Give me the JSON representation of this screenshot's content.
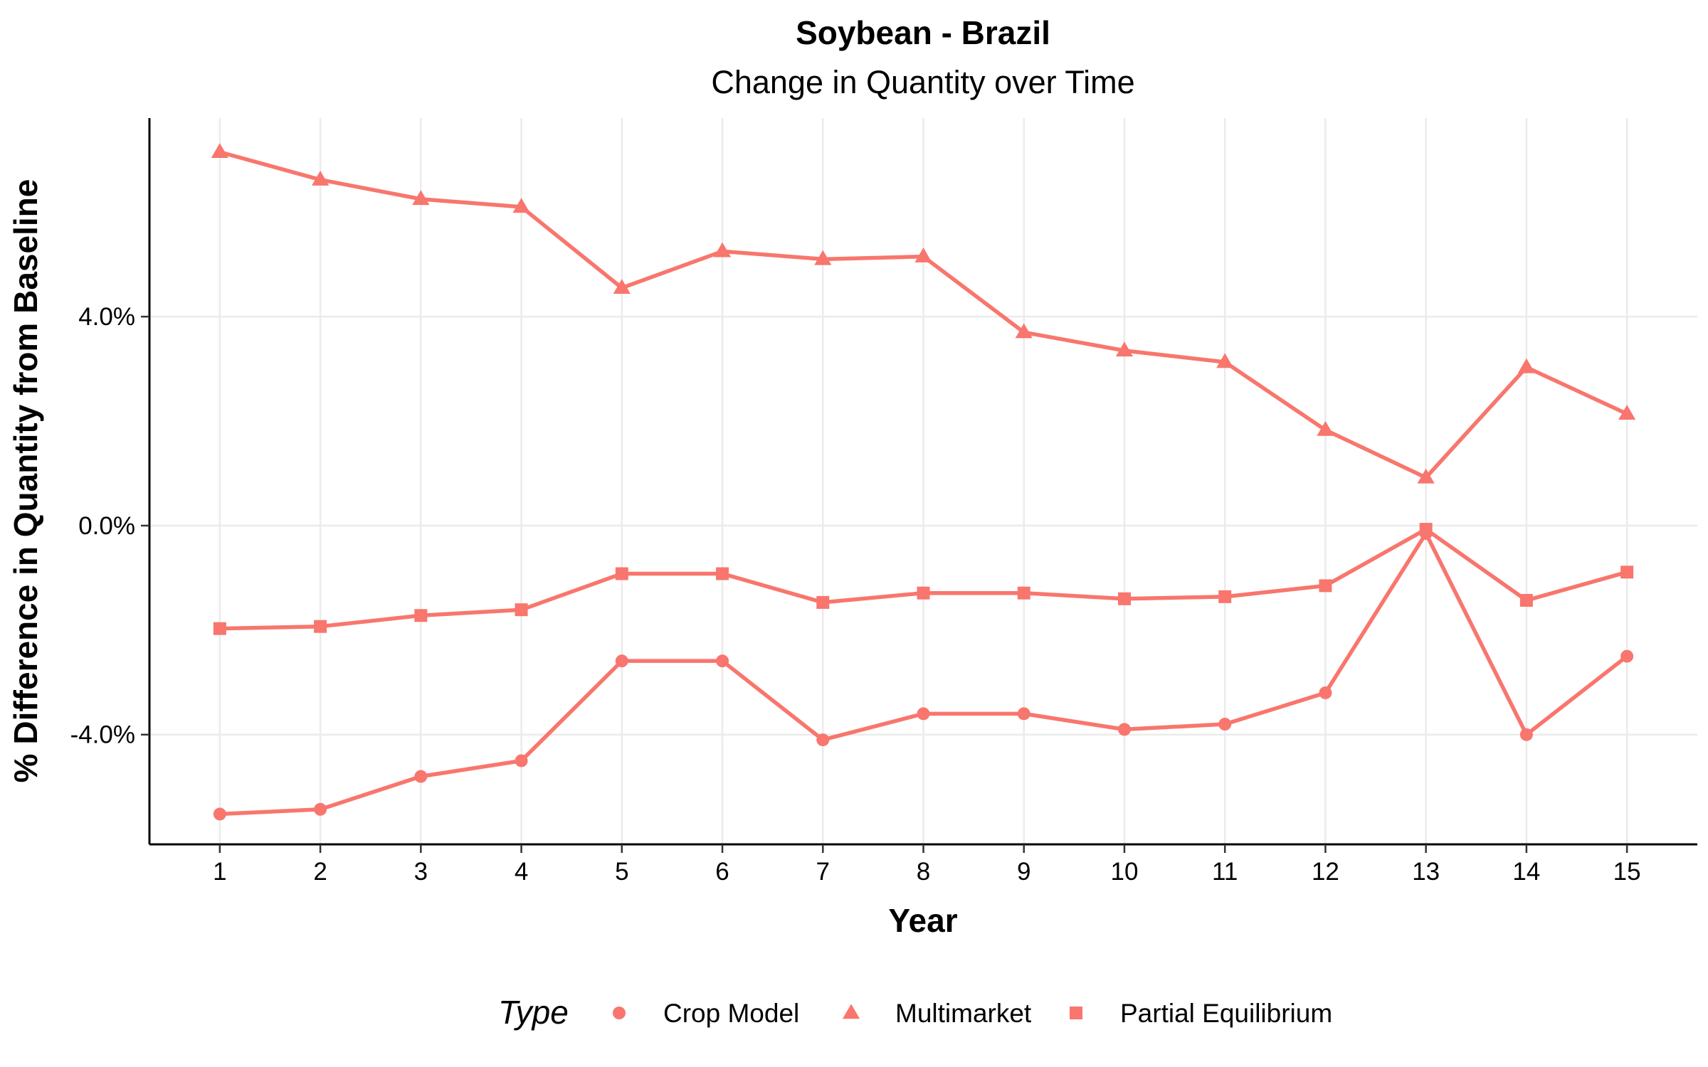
{
  "chart_data": {
    "type": "line",
    "title": "Soybean - Brazil",
    "subtitle": "Change in Quantity over Time",
    "xlabel": "Year",
    "ylabel": "% Difference in Quantity from Baseline",
    "x": [
      1,
      2,
      3,
      4,
      5,
      6,
      7,
      8,
      9,
      10,
      11,
      12,
      13,
      14,
      15
    ],
    "x_tick_labels": [
      "1",
      "2",
      "3",
      "4",
      "5",
      "6",
      "7",
      "8",
      "9",
      "10",
      "11",
      "12",
      "13",
      "14",
      "15"
    ],
    "xlim": [
      0.3,
      15.7
    ],
    "ylim": [
      -6.1,
      7.8
    ],
    "y_ticks": [
      4.0,
      0.0,
      -4.0
    ],
    "y_tick_labels": [
      "4.0%",
      "0.0%",
      "-4.0%"
    ],
    "grid": true,
    "legend_title": "Type",
    "legend_position": "bottom",
    "color": "#F8766D",
    "series": [
      {
        "name": "Crop Model",
        "marker": "circle",
        "values": [
          -5.52,
          -5.43,
          -4.8,
          -4.5,
          -2.59,
          -2.59,
          -4.1,
          -3.6,
          -3.6,
          -3.9,
          -3.8,
          -3.2,
          -0.15,
          -4.0,
          -2.5
        ]
      },
      {
        "name": "Multimarket",
        "marker": "triangle",
        "values": [
          7.15,
          6.62,
          6.25,
          6.1,
          4.55,
          5.25,
          5.1,
          5.15,
          3.7,
          3.35,
          3.13,
          1.83,
          0.92,
          3.03,
          2.14
        ]
      },
      {
        "name": "Partial Equilibrium",
        "marker": "square",
        "values": [
          -1.97,
          -1.93,
          -1.72,
          -1.61,
          -0.92,
          -0.92,
          -1.47,
          -1.29,
          -1.29,
          -1.4,
          -1.36,
          -1.15,
          -0.07,
          -1.43,
          -0.89
        ]
      }
    ]
  }
}
